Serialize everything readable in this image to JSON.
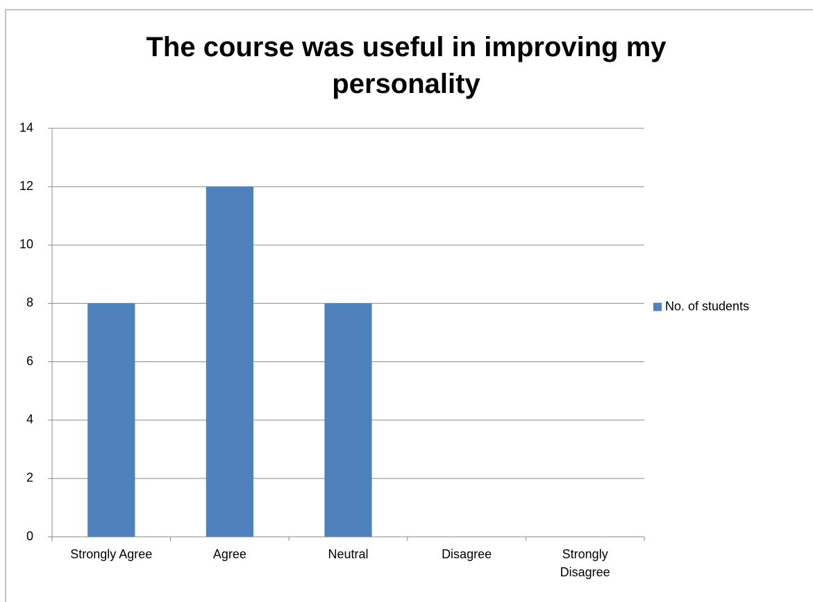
{
  "chart_data": {
    "type": "bar",
    "title": "The course was useful in improving my personality",
    "categories": [
      "Strongly Agree",
      "Agree",
      "Neutral",
      "Disagree",
      "Strongly Disagree"
    ],
    "series": [
      {
        "name": "No. of students",
        "color": "#4f81bd",
        "values": [
          8,
          12,
          8,
          0,
          0
        ]
      }
    ],
    "ylim": [
      0,
      14
    ],
    "yticks": [
      0,
      2,
      4,
      6,
      8,
      10,
      12,
      14
    ],
    "grid": true,
    "legend": "right"
  }
}
